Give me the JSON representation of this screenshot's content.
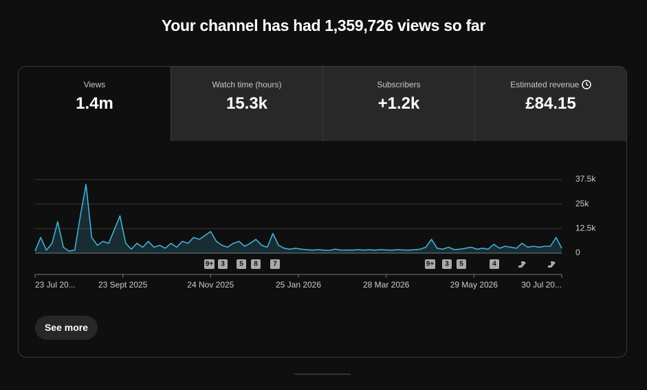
{
  "header": {
    "title": "Your channel has had 1,359,726 views so far"
  },
  "tabs": [
    {
      "label": "Views",
      "value": "1.4m"
    },
    {
      "label": "Watch time (hours)",
      "value": "15.3k"
    },
    {
      "label": "Subscribers",
      "value": "+1.2k"
    },
    {
      "label": "Estimated revenue",
      "value": "£84.15"
    }
  ],
  "chart_data": {
    "type": "line",
    "color": "#41b0d6",
    "x": [
      "2025-07-23",
      "2025-07-27",
      "2025-07-31",
      "2025-08-04",
      "2025-08-08",
      "2025-08-12",
      "2025-08-16",
      "2025-08-20",
      "2025-08-24",
      "2025-08-28",
      "2025-09-01",
      "2025-09-05",
      "2025-09-09",
      "2025-09-13",
      "2025-09-17",
      "2025-09-21",
      "2025-09-25",
      "2025-09-29",
      "2025-10-03",
      "2025-10-07",
      "2025-10-11",
      "2025-10-15",
      "2025-10-19",
      "2025-10-23",
      "2025-10-27",
      "2025-10-31",
      "2025-11-04",
      "2025-11-08",
      "2025-11-12",
      "2025-11-16",
      "2025-11-20",
      "2025-11-24",
      "2025-11-28",
      "2025-12-02",
      "2025-12-06",
      "2025-12-10",
      "2025-12-14",
      "2025-12-18",
      "2025-12-22",
      "2025-12-26",
      "2025-12-30",
      "2026-01-03",
      "2026-01-07",
      "2026-01-11",
      "2026-01-15",
      "2026-01-19",
      "2026-01-23",
      "2026-01-27",
      "2026-01-31",
      "2026-02-04",
      "2026-02-08",
      "2026-02-12",
      "2026-02-16",
      "2026-02-20",
      "2026-02-24",
      "2026-02-28",
      "2026-03-04",
      "2026-03-08",
      "2026-03-12",
      "2026-03-16",
      "2026-03-20",
      "2026-03-24",
      "2026-03-28",
      "2026-04-01",
      "2026-04-05",
      "2026-04-09",
      "2026-04-13",
      "2026-04-17",
      "2026-04-21",
      "2026-04-25",
      "2026-04-29",
      "2026-05-03",
      "2026-05-07",
      "2026-05-11",
      "2026-05-15",
      "2026-05-19",
      "2026-05-23",
      "2026-05-27",
      "2026-05-31",
      "2026-06-04",
      "2026-06-08",
      "2026-06-12",
      "2026-06-16",
      "2026-06-20",
      "2026-06-24",
      "2026-06-28",
      "2026-07-02",
      "2026-07-06",
      "2026-07-10",
      "2026-07-14",
      "2026-07-18",
      "2026-07-22",
      "2026-07-26",
      "2026-07-30"
    ],
    "values": [
      1000,
      8000,
      1500,
      5000,
      16000,
      3000,
      1000,
      1500,
      19000,
      35000,
      8000,
      4000,
      6000,
      5000,
      12000,
      19000,
      5000,
      2000,
      5000,
      3000,
      6000,
      3000,
      4000,
      2500,
      5000,
      3000,
      6000,
      5000,
      8000,
      7000,
      9000,
      11000,
      6000,
      4000,
      3000,
      5000,
      6000,
      3500,
      5000,
      7000,
      4000,
      3000,
      10000,
      4000,
      2500,
      2000,
      2500,
      2000,
      1800,
      1500,
      1800,
      1500,
      1400,
      2000,
      1500,
      1600,
      1500,
      1800,
      1500,
      1700,
      1500,
      1800,
      1600,
      1500,
      1800,
      1600,
      1500,
      1700,
      2000,
      3000,
      7000,
      2500,
      2000,
      3000,
      1800,
      2000,
      2500,
      3000,
      2000,
      2500,
      2000,
      4500,
      2500,
      3500,
      3000,
      2500,
      5000,
      3000,
      3500,
      3000,
      3500,
      3500,
      8000,
      2500
    ],
    "xlim": [
      "2025-07-23",
      "2026-07-30"
    ],
    "xticks": [
      {
        "value": "2025-07-23",
        "label": "23 Jul 20..."
      },
      {
        "value": "2025-09-23",
        "label": "23 Sept 2025"
      },
      {
        "value": "2025-11-24",
        "label": "24 Nov 2025"
      },
      {
        "value": "2026-01-25",
        "label": "25 Jan 2026"
      },
      {
        "value": "2026-03-28",
        "label": "28 Mar 2026"
      },
      {
        "value": "2026-05-29",
        "label": "29 May 2026"
      },
      {
        "value": "2026-07-30",
        "label": "30 Jul 20..."
      }
    ],
    "ylim": [
      0,
      37500
    ],
    "yticks": [
      {
        "value": 0,
        "label": "0"
      },
      {
        "value": 12500,
        "label": "12.5k"
      },
      {
        "value": 25000,
        "label": "25k"
      },
      {
        "value": 37500,
        "label": "37.5k"
      }
    ],
    "grid": true,
    "annotations": [
      "9+",
      "3",
      "5",
      "8",
      "7",
      "9+",
      "3",
      "5",
      "4"
    ]
  },
  "button": "See more"
}
